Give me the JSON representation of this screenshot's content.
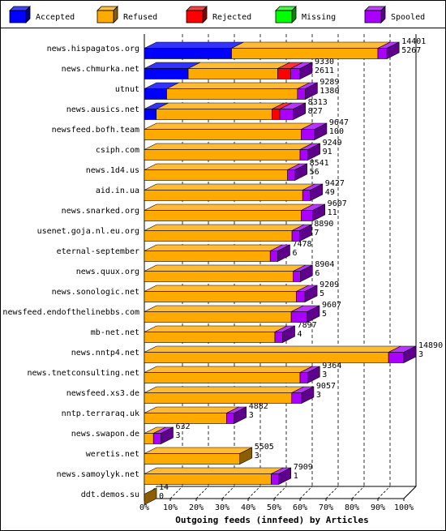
{
  "chart_data": {
    "type": "bar",
    "orientation": "horizontal",
    "stacked": true,
    "style": "3d",
    "title": "Outgoing feeds (innfeed) by Articles",
    "xlabel": "",
    "ylabel": "",
    "legend_position": "top",
    "grid": "vertical-dashed",
    "x_ticks": [
      "0%",
      "10%",
      "20%",
      "30%",
      "40%",
      "50%",
      "60%",
      "70%",
      "80%",
      "90%",
      "100%"
    ],
    "xlim": [
      0,
      100
    ],
    "series": [
      {
        "name": "Accepted",
        "color": "#0000ff"
      },
      {
        "name": "Refused",
        "color": "#ffaa00"
      },
      {
        "name": "Rejected",
        "color": "#ff0000"
      },
      {
        "name": "Missing",
        "color": "#00ff00"
      },
      {
        "name": "Spooled",
        "color": "#aa00ff"
      }
    ],
    "rows": [
      {
        "name": "news.hispagatos.org",
        "offered": "14401",
        "spooled_count": "5267",
        "pct": {
          "Accepted": 33.6,
          "Refused": 56.4,
          "Rejected": 0,
          "Missing": 0,
          "Spooled": 3.5
        }
      },
      {
        "name": "news.chmurka.net",
        "offered": "9330",
        "spooled_count": "2611",
        "pct": {
          "Accepted": 16.9,
          "Refused": 34.5,
          "Rejected": 5.0,
          "Missing": 0,
          "Spooled": 3.6
        }
      },
      {
        "name": "utnut",
        "offered": "9289",
        "spooled_count": "1380",
        "pct": {
          "Accepted": 8.6,
          "Refused": 50.4,
          "Rejected": 0,
          "Missing": 0,
          "Spooled": 3.0
        }
      },
      {
        "name": "news.ausics.net",
        "offered": "8313",
        "spooled_count": "827",
        "pct": {
          "Accepted": 4.6,
          "Refused": 44.6,
          "Rejected": 3.0,
          "Missing": 0,
          "Spooled": 5.2
        }
      },
      {
        "name": "newsfeed.bofh.team",
        "offered": "9647",
        "spooled_count": "100",
        "pct": {
          "Accepted": 0,
          "Refused": 60.5,
          "Rejected": 0,
          "Missing": 0,
          "Spooled": 5.1
        }
      },
      {
        "name": "csiph.com",
        "offered": "9249",
        "spooled_count": "91",
        "pct": {
          "Accepted": 0,
          "Refused": 60.0,
          "Rejected": 0,
          "Missing": 0,
          "Spooled": 3.0
        }
      },
      {
        "name": "news.1d4.us",
        "offered": "8541",
        "spooled_count": "56",
        "pct": {
          "Accepted": 0,
          "Refused": 55.2,
          "Rejected": 0,
          "Missing": 0,
          "Spooled": 2.8
        }
      },
      {
        "name": "aid.in.ua",
        "offered": "9427",
        "spooled_count": "49",
        "pct": {
          "Accepted": 0,
          "Refused": 61.0,
          "Rejected": 0,
          "Missing": 0,
          "Spooled": 3.0
        }
      },
      {
        "name": "news.snarked.org",
        "offered": "9607",
        "spooled_count": "11",
        "pct": {
          "Accepted": 0,
          "Refused": 60.5,
          "Rejected": 0,
          "Missing": 0,
          "Spooled": 4.4
        }
      },
      {
        "name": "usenet.goja.nl.eu.org",
        "offered": "8890",
        "spooled_count": "7",
        "pct": {
          "Accepted": 0,
          "Refused": 56.9,
          "Rejected": 0,
          "Missing": 0,
          "Spooled": 2.9
        }
      },
      {
        "name": "eternal-september",
        "offered": "7478",
        "spooled_count": "6",
        "pct": {
          "Accepted": 0,
          "Refused": 48.5,
          "Rejected": 0,
          "Missing": 0,
          "Spooled": 2.9
        }
      },
      {
        "name": "news.quux.org",
        "offered": "8904",
        "spooled_count": "6",
        "pct": {
          "Accepted": 0,
          "Refused": 57.4,
          "Rejected": 0,
          "Missing": 0,
          "Spooled": 2.7
        }
      },
      {
        "name": "news.sonologic.net",
        "offered": "9209",
        "spooled_count": "5",
        "pct": {
          "Accepted": 0,
          "Refused": 58.6,
          "Rejected": 0,
          "Missing": 0,
          "Spooled": 3.3
        }
      },
      {
        "name": "newsfeed.endofthelinebbs.com",
        "offered": "9607",
        "spooled_count": "5",
        "pct": {
          "Accepted": 0,
          "Refused": 56.6,
          "Rejected": 0,
          "Missing": 0,
          "Spooled": 6.2
        }
      },
      {
        "name": "mb-net.net",
        "offered": "7897",
        "spooled_count": "4",
        "pct": {
          "Accepted": 0,
          "Refused": 50.3,
          "Rejected": 0,
          "Missing": 0,
          "Spooled": 3.0
        }
      },
      {
        "name": "news.nntp4.net",
        "offered": "14890",
        "spooled_count": "3",
        "pct": {
          "Accepted": 0,
          "Refused": 94.1,
          "Rejected": 0,
          "Missing": 0,
          "Spooled": 5.9
        }
      },
      {
        "name": "news.tnetconsulting.net",
        "offered": "9364",
        "spooled_count": "3",
        "pct": {
          "Accepted": 0,
          "Refused": 60.0,
          "Rejected": 0,
          "Missing": 0,
          "Spooled": 2.9
        }
      },
      {
        "name": "newsfeed.xs3.de",
        "offered": "9057",
        "spooled_count": "3",
        "pct": {
          "Accepted": 0,
          "Refused": 56.8,
          "Rejected": 0,
          "Missing": 0,
          "Spooled": 3.8
        }
      },
      {
        "name": "nntp.terraraq.uk",
        "offered": "4882",
        "spooled_count": "3",
        "pct": {
          "Accepted": 0,
          "Refused": 31.7,
          "Rejected": 0,
          "Missing": 0,
          "Spooled": 2.9
        }
      },
      {
        "name": "news.swapon.de",
        "offered": "632",
        "spooled_count": "3",
        "pct": {
          "Accepted": 0,
          "Refused": 3.5,
          "Rejected": 0,
          "Missing": 0,
          "Spooled": 2.9
        }
      },
      {
        "name": "weretis.net",
        "offered": "5505",
        "spooled_count": "3",
        "pct": {
          "Accepted": 0,
          "Refused": 36.8,
          "Rejected": 0,
          "Missing": 0,
          "Spooled": 0
        }
      },
      {
        "name": "news.samoylyk.net",
        "offered": "7909",
        "spooled_count": "1",
        "pct": {
          "Accepted": 0,
          "Refused": 48.9,
          "Rejected": 0,
          "Missing": 0,
          "Spooled": 2.9
        }
      },
      {
        "name": "ddt.demos.su",
        "offered": "14",
        "spooled_count": "0",
        "pct": {
          "Accepted": 0,
          "Refused": 0,
          "Rejected": 0,
          "Missing": 0,
          "Spooled": 0
        }
      }
    ]
  }
}
